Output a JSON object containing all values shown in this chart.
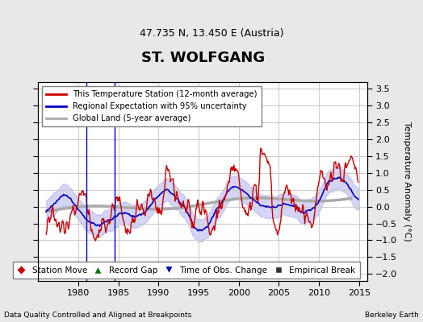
{
  "title": "ST. WOLFGANG",
  "subtitle": "47.735 N, 13.450 E (Austria)",
  "ylabel": "Temperature Anomaly (°C)",
  "xlabel_left": "Data Quality Controlled and Aligned at Breakpoints",
  "xlabel_right": "Berkeley Earth",
  "xlim": [
    1975,
    2016
  ],
  "ylim": [
    -2.2,
    3.7
  ],
  "yticks": [
    -2,
    -1.5,
    -1,
    -0.5,
    0,
    0.5,
    1,
    1.5,
    2,
    2.5,
    3,
    3.5
  ],
  "xticks": [
    1980,
    1985,
    1990,
    1995,
    2000,
    2005,
    2010,
    2015
  ],
  "bg_color": "#e8e8e8",
  "plot_bg_color": "#ffffff",
  "grid_color": "#cccccc",
  "red_line_color": "#cc0000",
  "blue_line_color": "#0000cc",
  "blue_fill_color": "#aaaaee",
  "gray_line_color": "#aaaaaa",
  "legend_items": [
    {
      "label": "This Temperature Station (12-month average)",
      "color": "#cc0000",
      "lw": 2
    },
    {
      "label": "Regional Expectation with 95% uncertainty",
      "color": "#0000cc",
      "lw": 2
    },
    {
      "label": "Global Land (5-year average)",
      "color": "#aaaaaa",
      "lw": 2
    }
  ],
  "marker_legend": [
    {
      "label": "Station Move",
      "color": "#cc0000",
      "marker": "D"
    },
    {
      "label": "Record Gap",
      "color": "#007700",
      "marker": "^"
    },
    {
      "label": "Time of Obs. Change",
      "color": "#0000cc",
      "marker": "v"
    },
    {
      "label": "Empirical Break",
      "color": "#333333",
      "marker": "s"
    }
  ]
}
